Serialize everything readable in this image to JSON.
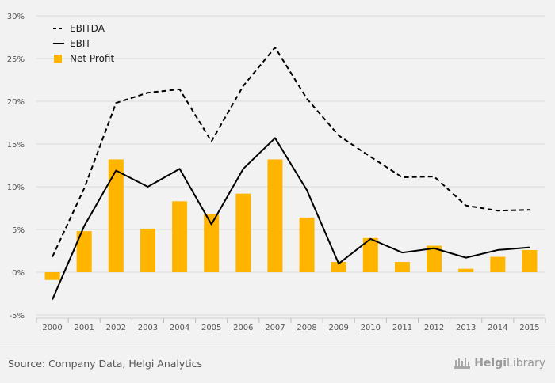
{
  "chart_data": {
    "type": "bar",
    "categories": [
      "2000",
      "2001",
      "2002",
      "2003",
      "2004",
      "2005",
      "2006",
      "2007",
      "2008",
      "2009",
      "2010",
      "2011",
      "2012",
      "2013",
      "2014",
      "2015"
    ],
    "yticks": [
      "-5%",
      "0%",
      "5%",
      "10%",
      "15%",
      "20%",
      "25%",
      "30%"
    ],
    "ylim": [
      -5,
      30
    ],
    "grid": true,
    "legend_position": "top-left",
    "series": [
      {
        "name": "EBITDA",
        "kind": "line",
        "style": "dashed",
        "color": "#000000",
        "values": [
          1.8,
          9.8,
          19.8,
          21.0,
          21.4,
          15.3,
          21.8,
          26.3,
          20.3,
          16.0,
          13.5,
          11.1,
          11.2,
          7.8,
          7.2,
          7.3
        ]
      },
      {
        "name": "EBIT",
        "kind": "line",
        "style": "solid",
        "color": "#000000",
        "values": [
          -3.2,
          5.4,
          11.9,
          10.0,
          12.1,
          5.6,
          12.1,
          15.7,
          9.6,
          1.0,
          3.9,
          2.3,
          2.8,
          1.7,
          2.6,
          2.9
        ]
      },
      {
        "name": "Net Profit",
        "kind": "bar",
        "color": "#ffb400",
        "values": [
          -0.9,
          4.8,
          13.2,
          5.1,
          8.3,
          6.8,
          9.2,
          13.2,
          6.4,
          1.2,
          4.0,
          1.2,
          3.1,
          0.4,
          1.8,
          2.6
        ]
      }
    ]
  },
  "footer": {
    "source": "Source: Company Data, Helgi Analytics",
    "brand_bold": "Helgi",
    "brand_light": "Library"
  }
}
